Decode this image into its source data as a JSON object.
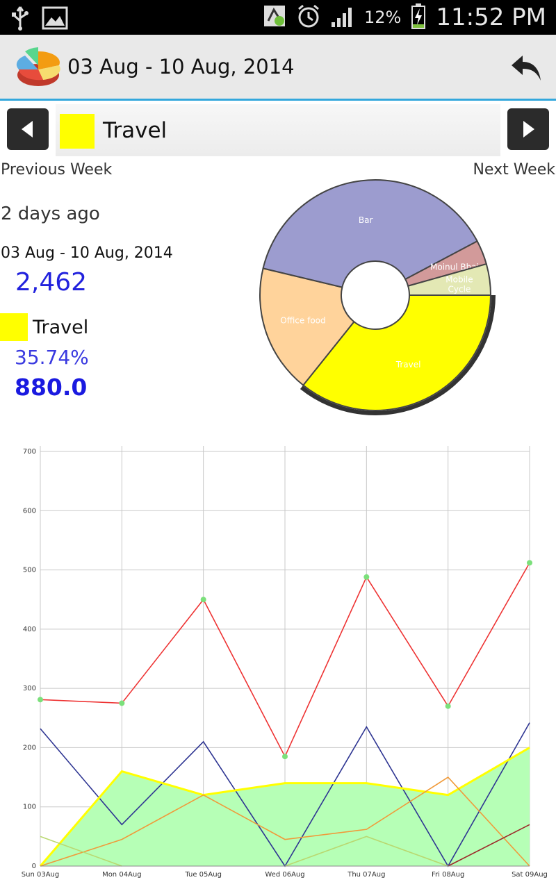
{
  "status_bar": {
    "icons": [
      "usb-icon",
      "image-icon",
      "app-notification-icon",
      "alarm-icon",
      "signal-icon",
      "battery-charging-icon"
    ],
    "battery": "12%",
    "time": "11:52 PM"
  },
  "app_bar": {
    "title": "03 Aug - 10 Aug, 2014",
    "logo_icon": "pie-chart-logo-icon",
    "back_icon": "back-arrow-icon"
  },
  "category_nav": {
    "selected_category": "Travel",
    "swatch_color": "#ffff00",
    "prev_label": "Previous Week",
    "next_label": "Next Week"
  },
  "summary": {
    "time_ago": "2 days ago",
    "range": "03 Aug - 10 Aug, 2014",
    "total": "2,462",
    "selected_label": "Travel",
    "selected_percent": "35.74%",
    "selected_amount": "880.0"
  },
  "pie": {
    "slices": [
      {
        "label": "Travel",
        "value": 35.74,
        "color": "#ffff00"
      },
      {
        "label": "Office food",
        "value": 18.0,
        "color": "#ffd39b"
      },
      {
        "label": "Bar",
        "value": 38.5,
        "color": "#9c9ccf"
      },
      {
        "label": "Moinul Bhai",
        "value": 3.4,
        "color": "#d29a9a"
      },
      {
        "label": "Mobile Cycle",
        "value": 4.36,
        "color": "#e3e8b4"
      }
    ]
  },
  "chart_data": {
    "type": "line",
    "categories": [
      "Sun 03Aug",
      "Mon 04Aug",
      "Tue 05Aug",
      "Wed 06Aug",
      "Thu 07Aug",
      "Fri 08Aug",
      "Sat 09Aug"
    ],
    "ylim": [
      0,
      700
    ],
    "yticks": [
      "0",
      "100",
      "200",
      "300",
      "400",
      "500",
      "600",
      "700"
    ],
    "grid": true,
    "series": [
      {
        "values": [
          281,
          275,
          450,
          185,
          488,
          270,
          512
        ],
        "color": "#ee3333",
        "markers": true
      },
      {
        "values": [
          232,
          70,
          210,
          0,
          235,
          0,
          242
        ],
        "color": "#2e3592"
      },
      {
        "values": [
          0,
          160,
          120,
          140,
          140,
          120,
          200
        ],
        "color": "#ffff00",
        "fill": "#b6ffb6"
      },
      {
        "values": [
          0,
          45,
          120,
          45,
          62,
          150,
          0
        ],
        "color": "#f09a3a"
      },
      {
        "values": [
          50,
          0,
          null,
          0,
          50,
          0,
          null
        ],
        "color": "#b9d870"
      },
      {
        "values": [
          null,
          null,
          null,
          null,
          null,
          0,
          70
        ],
        "color": "#9c2a2a"
      }
    ]
  }
}
